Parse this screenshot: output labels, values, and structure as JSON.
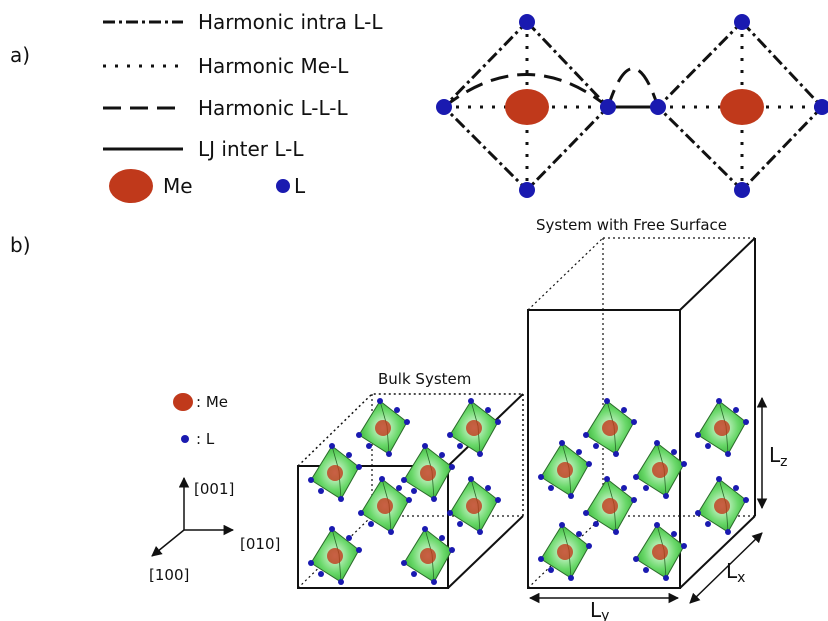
{
  "panels": {
    "a_label": "a)",
    "b_label": "b)"
  },
  "legend_lines": [
    {
      "label": "Harmonic intra L-L",
      "style": "dash-dot"
    },
    {
      "label": "Harmonic Me-L",
      "style": "dotted"
    },
    {
      "label": "Harmonic L-L-L",
      "style": "dashed"
    },
    {
      "label": "LJ inter L-L",
      "style": "solid"
    }
  ],
  "legend_atoms": {
    "me_label": "Me",
    "l_label": "L"
  },
  "legend_b": {
    "me_label": ": Me",
    "l_label": ": L"
  },
  "axes": {
    "z": "[001]",
    "y": "[010]",
    "x": "[100]"
  },
  "boxes": {
    "bulk_title": "Bulk System",
    "free_title": "System with Free Surface"
  },
  "dims": {
    "lz": "L",
    "lz_sub": "z",
    "lx": "L",
    "lx_sub": "x",
    "ly": "L",
    "ly_sub": "y"
  },
  "colors": {
    "me": "#c0391b",
    "l": "#1a1ab0",
    "octahedron": "#3cc83c"
  }
}
